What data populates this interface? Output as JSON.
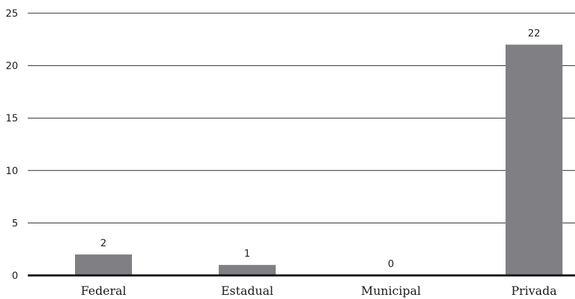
{
  "chart_data": {
    "type": "bar",
    "categories": [
      "Federal",
      "Estadual",
      "Municipal",
      "Privada"
    ],
    "values": [
      2,
      1,
      0,
      22
    ],
    "data_labels": [
      "2",
      "1",
      "0",
      "22"
    ],
    "title": "",
    "xlabel": "",
    "ylabel": "",
    "ylim": [
      0,
      25
    ],
    "yticks": [
      0,
      5,
      10,
      15,
      20,
      25
    ],
    "ytick_labels": [
      "0",
      "5",
      "10",
      "15",
      "20",
      "25"
    ],
    "grid": true,
    "legend": "none",
    "bar_color": "#808084"
  }
}
